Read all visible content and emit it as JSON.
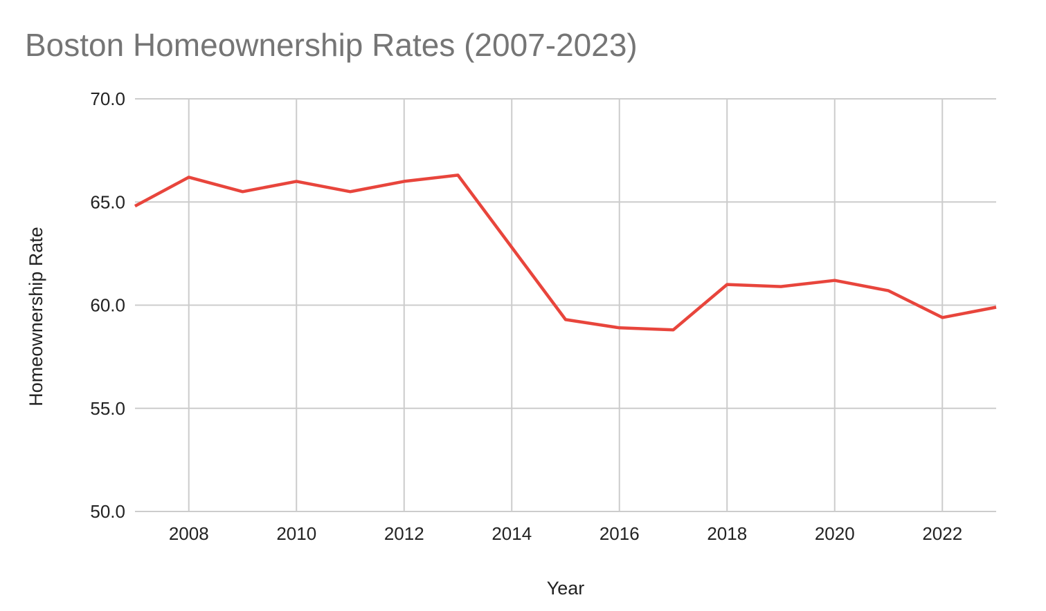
{
  "chart_data": {
    "type": "line",
    "title": "Boston Homeownership Rates (2007-2023)",
    "xlabel": "Year",
    "ylabel": "Homeownership Rate",
    "xlim": [
      2007,
      2023
    ],
    "ylim": [
      50,
      70
    ],
    "x_ticks": [
      2008,
      2010,
      2012,
      2014,
      2016,
      2018,
      2020,
      2022
    ],
    "y_ticks": [
      "50.0",
      "55.0",
      "60.0",
      "65.0",
      "70.0"
    ],
    "grid": true,
    "legend": "none",
    "series": [
      {
        "color": "#e8453c",
        "x": [
          2007,
          2008,
          2009,
          2010,
          2011,
          2012,
          2013,
          2014,
          2015,
          2016,
          2017,
          2018,
          2019,
          2020,
          2021,
          2022,
          2023
        ],
        "values": [
          64.8,
          66.2,
          65.5,
          66.0,
          65.5,
          66.0,
          66.3,
          62.8,
          59.3,
          58.9,
          58.8,
          61.0,
          60.9,
          61.2,
          60.7,
          59.4,
          59.9
        ]
      }
    ],
    "gridline_color": "#cccccc",
    "text_color": "#222222",
    "title_color": "#757575"
  }
}
